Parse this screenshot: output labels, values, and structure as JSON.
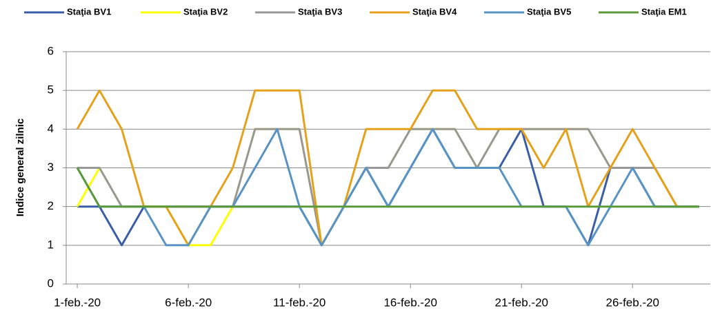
{
  "chart_data": {
    "type": "line",
    "y_label": "Indice general zilnic",
    "categories": [
      "1-feb.-20",
      null,
      null,
      null,
      null,
      "6-feb.-20",
      null,
      null,
      null,
      null,
      "11-feb.-20",
      null,
      null,
      null,
      null,
      "16-feb.-20",
      null,
      null,
      null,
      null,
      "21-feb.-20",
      null,
      null,
      null,
      null,
      "26-feb.-20",
      null,
      null,
      null
    ],
    "series": [
      {
        "name": "Staţia BV1",
        "color": "#3a5da8",
        "values": [
          2,
          2,
          1,
          2,
          2,
          2,
          2,
          2,
          2,
          2,
          2,
          1,
          2,
          3,
          2,
          3,
          4,
          3,
          3,
          3,
          4,
          2,
          2,
          1,
          3,
          3,
          2,
          2,
          2
        ]
      },
      {
        "name": "Staţia BV2",
        "color": "#ffff00",
        "values": [
          2,
          3,
          2,
          2,
          2,
          1,
          1,
          2,
          4,
          4,
          4,
          1,
          2,
          3,
          3,
          4,
          4,
          4,
          3,
          4,
          4,
          4,
          4,
          4,
          3,
          3,
          3,
          2,
          2
        ]
      },
      {
        "name": "Staţia BV3",
        "color": "#989898",
        "values": [
          3,
          3,
          2,
          2,
          2,
          2,
          2,
          2,
          4,
          4,
          4,
          1,
          2,
          3,
          3,
          4,
          4,
          4,
          3,
          4,
          4,
          4,
          4,
          4,
          3,
          3,
          3,
          2,
          2
        ]
      },
      {
        "name": "Staţia BV4",
        "color": "#e5a11b",
        "values": [
          4,
          5,
          4,
          2,
          2,
          1,
          2,
          3,
          5,
          5,
          5,
          1,
          2,
          4,
          4,
          4,
          5,
          5,
          4,
          4,
          4,
          3,
          4,
          2,
          3,
          4,
          3,
          2,
          2
        ]
      },
      {
        "name": "Staţia BV5",
        "color": "#5893c6",
        "values": [
          3,
          2,
          2,
          2,
          1,
          1,
          2,
          2,
          3,
          4,
          2,
          1,
          2,
          3,
          2,
          3,
          4,
          3,
          3,
          3,
          2,
          2,
          2,
          1,
          2,
          3,
          2,
          2,
          2
        ]
      },
      {
        "name": "Staţia EM1",
        "color": "#5a9a3a",
        "values": [
          3,
          2,
          2,
          2,
          2,
          2,
          2,
          2,
          2,
          2,
          2,
          2,
          2,
          2,
          2,
          2,
          2,
          2,
          2,
          2,
          2,
          2,
          2,
          2,
          2,
          2,
          2,
          2,
          2
        ]
      }
    ],
    "ylim": [
      0,
      6
    ],
    "yticks": [
      0,
      1,
      2,
      3,
      4,
      5,
      6
    ],
    "grid": true,
    "legend": "top"
  }
}
